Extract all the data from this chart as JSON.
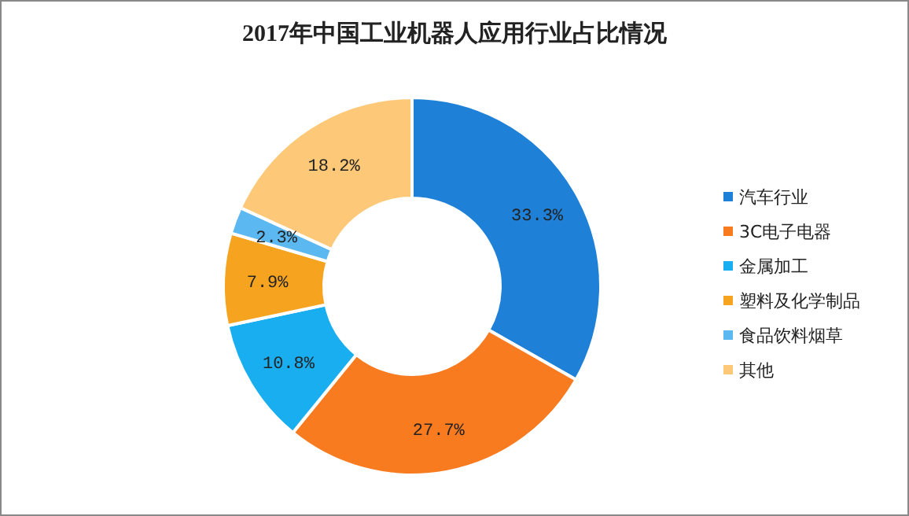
{
  "chart_data": {
    "type": "donut",
    "title": "2017年中国工业机器人应用行业占比情况",
    "categories": [
      "汽车行业",
      "3C电子电器",
      "金属加工",
      "塑料及化学制品",
      "食品饮料烟草",
      "其他"
    ],
    "values": [
      33.3,
      27.7,
      10.8,
      7.9,
      2.3,
      18.2
    ],
    "colors": [
      "#1f80d8",
      "#f97b20",
      "#18aef0",
      "#f6a41f",
      "#5cb8f0",
      "#fdc978"
    ],
    "value_labels": [
      "33.3%",
      "27.7%",
      "10.8%",
      "7.9%",
      "2.3%",
      "18.2%"
    ],
    "legend": "right"
  }
}
